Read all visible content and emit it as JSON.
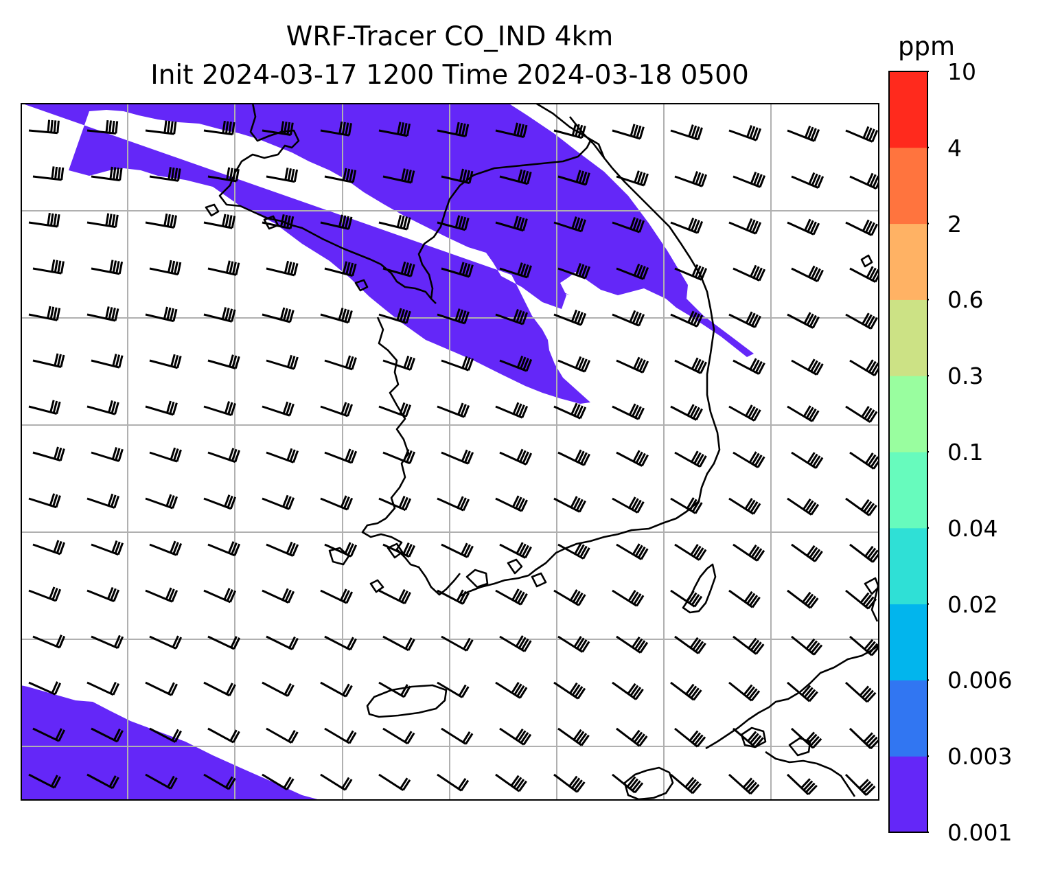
{
  "chart_data": {
    "type": "map",
    "title": "WRF-Tracer CO_IND 4km",
    "subtitle": "Init 2024-03-17 1200 Time 2024-03-18 0500",
    "grid": true,
    "overlay": "wind barbs",
    "colorbar": {
      "label": "ppm",
      "levels": [
        "0.001",
        "0.003",
        "0.006",
        "0.02",
        "0.04",
        "0.1",
        "0.3",
        "0.6",
        "2",
        "4",
        "10"
      ],
      "colors": [
        "#6427f8",
        "#3176f2",
        "#02b5ed",
        "#2fe0d6",
        "#67fbbd",
        "#99fe9f",
        "#cce285",
        "#ffb264",
        "#ff743e",
        "#ff2a1d"
      ]
    },
    "colors": {
      "background": "#ffffff",
      "shading": "#6427f8",
      "grid": "#b0b0b0",
      "coast": "#000000"
    }
  }
}
